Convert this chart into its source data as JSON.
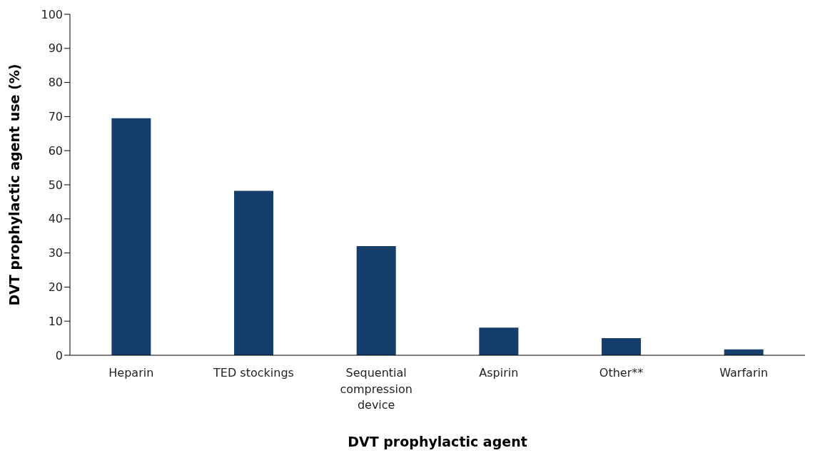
{
  "chart_data": {
    "type": "bar",
    "xlabel": "DVT prophylactic agent",
    "ylabel": "DVT prophylactic agent use (%)",
    "categories": [
      "Heparin",
      "TED stockings",
      "Sequential compression device",
      "Aspirin",
      "Other**",
      "Warfarin"
    ],
    "values": [
      69.5,
      48.2,
      32,
      8.1,
      5,
      1.7
    ],
    "color": "#163e6a",
    "ylim": [
      0,
      100
    ],
    "yticks": [
      0,
      10,
      20,
      30,
      40,
      50,
      60,
      70,
      80,
      90,
      100
    ],
    "grid": false,
    "legend": false
  }
}
